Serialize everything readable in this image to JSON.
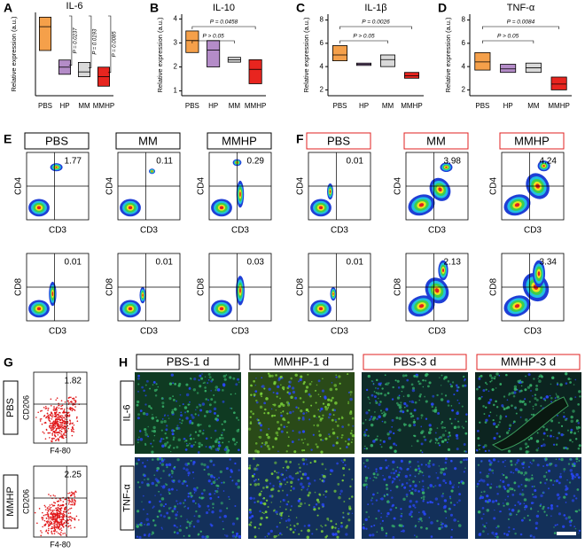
{
  "chart_data": [
    {
      "type": "box",
      "label": "A",
      "title": "IL-6",
      "y_label": "Relative expression (a.u.)",
      "categories": [
        "PBS",
        "HP",
        "MM",
        "MMHP"
      ],
      "colors": [
        "#f5a04a",
        "#b48cc8",
        "#d9d9d9",
        "#e8251f"
      ],
      "low": [
        2.9,
        1.9,
        1.8,
        1.4
      ],
      "median": [
        3.9,
        2.2,
        2.0,
        1.8
      ],
      "high": [
        4.3,
        2.5,
        2.4,
        2.2
      ],
      "ylim": [
        1,
        4.5
      ],
      "annotations": [
        "P = 0.0237",
        "P = 0.0193",
        "P = 0.0085"
      ]
    },
    {
      "type": "box",
      "label": "B",
      "title": "IL-10",
      "y_label": "Relative expression (a.u.)",
      "categories": [
        "PBS",
        "HP",
        "MM",
        "MMHP"
      ],
      "colors": [
        "#f5a04a",
        "#b48cc8",
        "#d9d9d9",
        "#e8251f"
      ],
      "low": [
        2.6,
        2.0,
        2.2,
        1.3
      ],
      "median": [
        3.1,
        2.7,
        2.3,
        1.9
      ],
      "high": [
        3.5,
        3.1,
        2.4,
        2.3
      ],
      "ylim": [
        0.8,
        4.2
      ],
      "yticks": [
        1,
        2,
        3,
        4
      ],
      "annotations": [
        "P = 0.0458",
        "P > 0.05"
      ]
    },
    {
      "type": "box",
      "label": "C",
      "title": "IL-1β",
      "y_label": "Relative expression (a.u.)",
      "categories": [
        "PBS",
        "HP",
        "MM",
        "MMHP"
      ],
      "colors": [
        "#f5a04a",
        "#b48cc8",
        "#d9d9d9",
        "#e8251f"
      ],
      "low": [
        4.5,
        4.1,
        4.0,
        3.0
      ],
      "median": [
        5.0,
        4.2,
        4.6,
        3.2
      ],
      "high": [
        5.8,
        4.3,
        5.0,
        3.5
      ],
      "ylim": [
        1.5,
        8.5
      ],
      "yticks": [
        2,
        4,
        6,
        8
      ],
      "annotations": [
        "P = 0.0026",
        "P > 0.05"
      ]
    },
    {
      "type": "box",
      "label": "D",
      "title": "TNF-α",
      "y_label": "Relative expression (a.u.)",
      "categories": [
        "PBS",
        "HP",
        "MM",
        "MMHP"
      ],
      "colors": [
        "#f5a04a",
        "#b48cc8",
        "#d9d9d9",
        "#e8251f"
      ],
      "low": [
        3.7,
        3.5,
        3.5,
        2.0
      ],
      "median": [
        4.4,
        3.8,
        3.9,
        2.5
      ],
      "high": [
        5.2,
        4.2,
        4.3,
        3.1
      ],
      "ylim": [
        1.5,
        8.5
      ],
      "yticks": [
        2,
        4,
        6,
        8
      ],
      "annotations": [
        "P = 0.0084",
        "P > 0.05"
      ]
    }
  ],
  "flow_E": {
    "label": "E",
    "headers": [
      "PBS",
      "MM",
      "MMHP"
    ],
    "rows": [
      {
        "y_label": "CD4",
        "x_label": "CD3",
        "values": [
          1.77,
          0.11,
          0.29
        ]
      },
      {
        "y_label": "CD8",
        "x_label": "CD3",
        "values": [
          0.01,
          0.01,
          0.03
        ]
      }
    ]
  },
  "flow_F": {
    "label": "F",
    "headers": [
      "PBS",
      "MM",
      "MMHP"
    ],
    "rows": [
      {
        "y_label": "CD4",
        "x_label": "CD3",
        "values": [
          0.01,
          3.98,
          4.24
        ]
      },
      {
        "y_label": "CD8",
        "x_label": "CD3",
        "values": [
          0.01,
          2.13,
          3.34
        ]
      }
    ]
  },
  "flow_G": {
    "label": "G",
    "y_label": "CD206",
    "x_label": "F4-80",
    "rows": [
      {
        "name": "PBS",
        "value": 1.82
      },
      {
        "name": "MMHP",
        "value": 2.25
      }
    ]
  },
  "images_H": {
    "label": "H",
    "headers": [
      "PBS-1 d",
      "MMHP-1 d",
      "PBS-3 d",
      "MMHP-3 d"
    ],
    "rows": [
      "IL-6",
      "TNF-α"
    ]
  }
}
